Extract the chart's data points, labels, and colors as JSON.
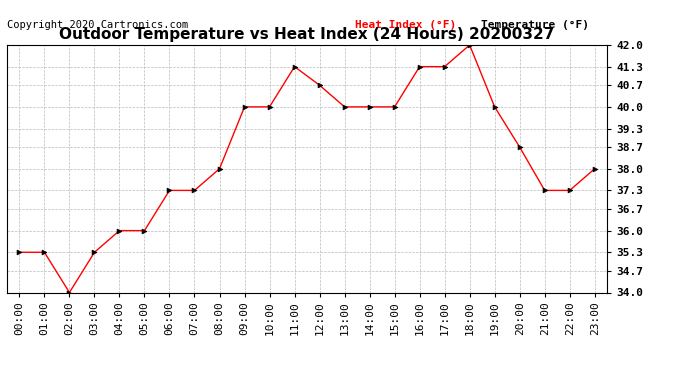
{
  "title": "Outdoor Temperature vs Heat Index (24 Hours) 20200327",
  "copyright_text": "Copyright 2020 Cartronics.com",
  "legend_heat": "Heat Index (°F)",
  "legend_temp": "Temperature (°F)",
  "x_labels": [
    "00:00",
    "01:00",
    "02:00",
    "03:00",
    "04:00",
    "05:00",
    "06:00",
    "07:00",
    "08:00",
    "09:00",
    "10:00",
    "11:00",
    "12:00",
    "13:00",
    "14:00",
    "15:00",
    "16:00",
    "17:00",
    "18:00",
    "19:00",
    "20:00",
    "21:00",
    "22:00",
    "23:00"
  ],
  "temperature": [
    35.3,
    35.3,
    34.0,
    35.3,
    36.0,
    36.0,
    37.3,
    37.3,
    38.0,
    40.0,
    40.0,
    41.3,
    40.7,
    40.0,
    40.0,
    40.0,
    41.3,
    41.3,
    42.0,
    40.0,
    38.7,
    37.3,
    37.3,
    38.0
  ],
  "ylim_min": 34.0,
  "ylim_max": 42.0,
  "yticks": [
    34.0,
    34.7,
    35.3,
    36.0,
    36.7,
    37.3,
    38.0,
    38.7,
    39.3,
    40.0,
    40.7,
    41.3,
    42.0
  ],
  "line_color": "red",
  "marker_color": "black",
  "grid_color": "#bbbbbb",
  "background_color": "white",
  "title_fontsize": 11,
  "tick_fontsize": 8,
  "copyright_color": "black",
  "legend_color_heat": "red",
  "legend_color_temp": "black"
}
